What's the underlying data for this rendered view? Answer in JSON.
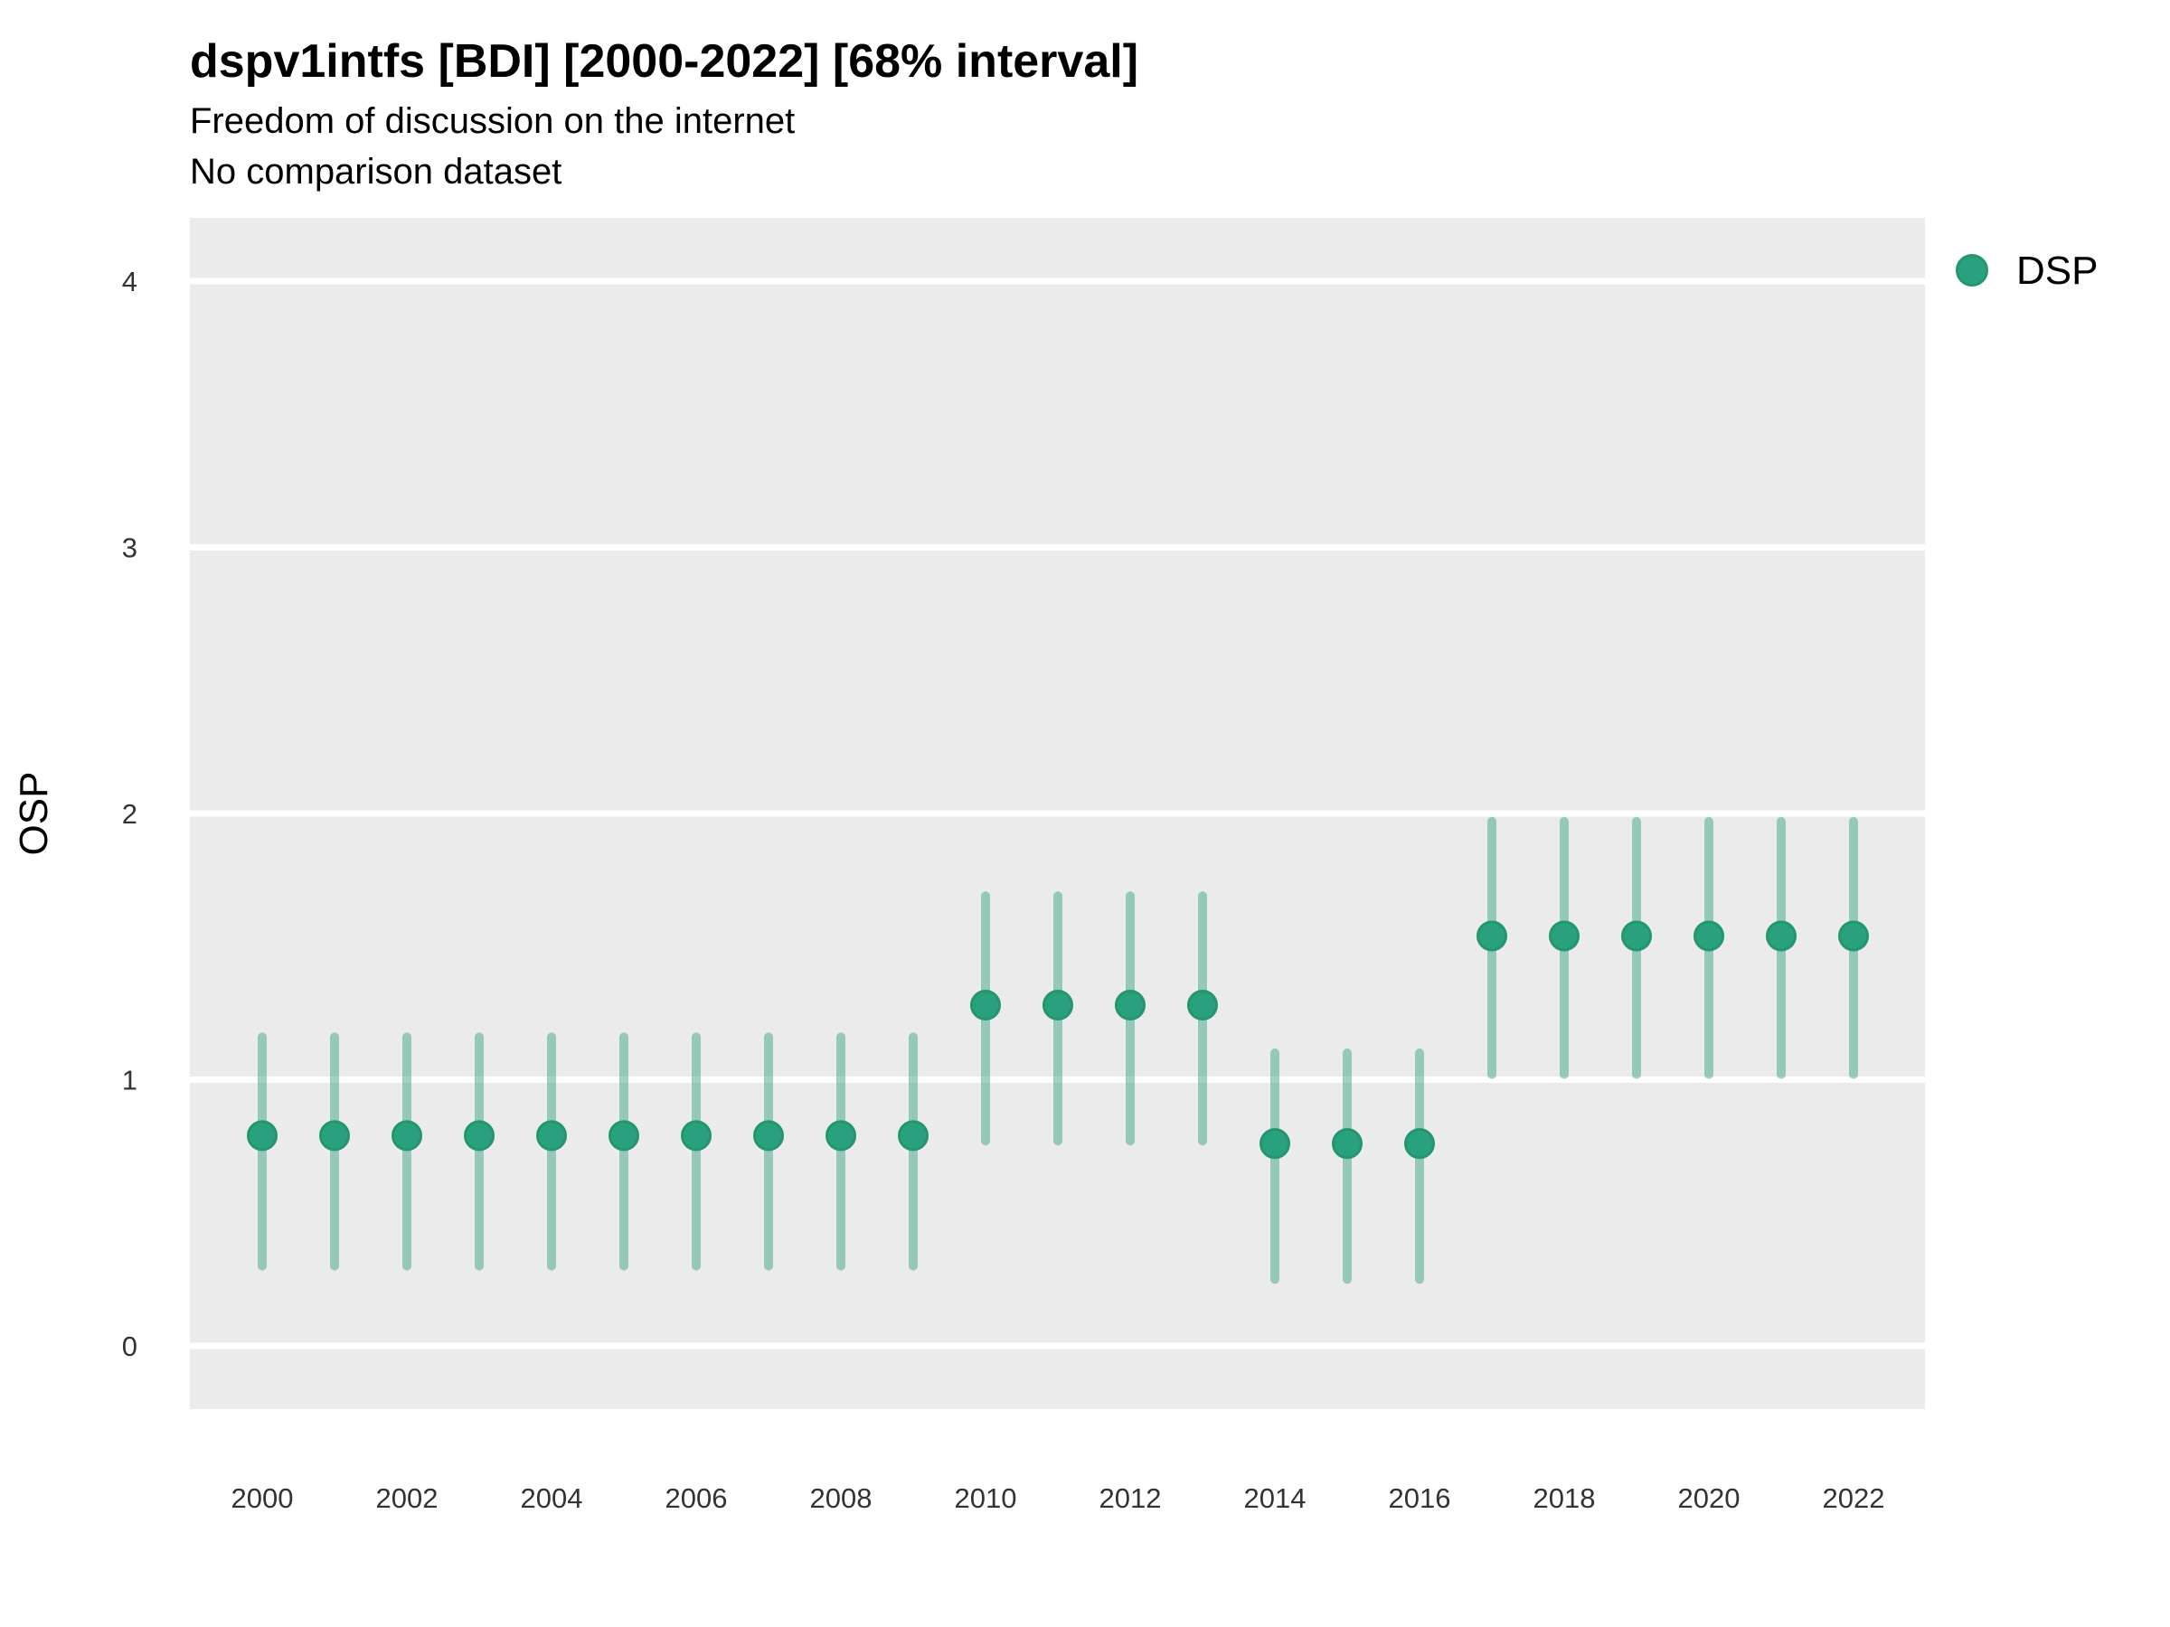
{
  "header": {
    "title": "dspv1intfs [BDI] [2000-2022] [68% interval]",
    "subtitle": "Freedom of discussion on the internet",
    "comparison_note": "No comparison dataset"
  },
  "chart_data": {
    "type": "pointrange",
    "title": "dspv1intfs [BDI] [2000-2022] [68% interval]",
    "subtitle": "Freedom of discussion on the internet",
    "note": "No comparison dataset",
    "xlabel": "",
    "ylabel": "OSP",
    "ylim": [
      0,
      4
    ],
    "yticks": [
      "4",
      "3",
      "2",
      "1",
      "0"
    ],
    "ytick_values": [
      4,
      3,
      2,
      1,
      0
    ],
    "xticks": [
      "2000",
      "2002",
      "2004",
      "2006",
      "2008",
      "2010",
      "2012",
      "2014",
      "2016",
      "2018",
      "2020",
      "2022"
    ],
    "xtick_values": [
      2000,
      2002,
      2004,
      2006,
      2008,
      2010,
      2012,
      2014,
      2016,
      2018,
      2020,
      2022
    ],
    "grid": "major-horizontal",
    "legend_position": "right",
    "legend": [
      {
        "label": "DSP",
        "color": "#2aa17e"
      }
    ],
    "interval": "68%",
    "series": [
      {
        "name": "DSP",
        "points": [
          {
            "x": 2000,
            "y": 0.79,
            "lo": 0.3,
            "hi": 1.16
          },
          {
            "x": 2001,
            "y": 0.79,
            "lo": 0.3,
            "hi": 1.16
          },
          {
            "x": 2002,
            "y": 0.79,
            "lo": 0.3,
            "hi": 1.16
          },
          {
            "x": 2003,
            "y": 0.79,
            "lo": 0.3,
            "hi": 1.16
          },
          {
            "x": 2004,
            "y": 0.79,
            "lo": 0.3,
            "hi": 1.16
          },
          {
            "x": 2005,
            "y": 0.79,
            "lo": 0.3,
            "hi": 1.16
          },
          {
            "x": 2006,
            "y": 0.79,
            "lo": 0.3,
            "hi": 1.16
          },
          {
            "x": 2007,
            "y": 0.79,
            "lo": 0.3,
            "hi": 1.16
          },
          {
            "x": 2008,
            "y": 0.79,
            "lo": 0.3,
            "hi": 1.16
          },
          {
            "x": 2009,
            "y": 0.79,
            "lo": 0.3,
            "hi": 1.16
          },
          {
            "x": 2010,
            "y": 1.28,
            "lo": 0.77,
            "hi": 1.69
          },
          {
            "x": 2011,
            "y": 1.28,
            "lo": 0.77,
            "hi": 1.69
          },
          {
            "x": 2012,
            "y": 1.28,
            "lo": 0.77,
            "hi": 1.69
          },
          {
            "x": 2013,
            "y": 1.28,
            "lo": 0.77,
            "hi": 1.69
          },
          {
            "x": 2014,
            "y": 0.76,
            "lo": 0.25,
            "hi": 1.1
          },
          {
            "x": 2015,
            "y": 0.76,
            "lo": 0.25,
            "hi": 1.1
          },
          {
            "x": 2016,
            "y": 0.76,
            "lo": 0.25,
            "hi": 1.1
          },
          {
            "x": 2017,
            "y": 1.54,
            "lo": 1.02,
            "hi": 1.97
          },
          {
            "x": 2018,
            "y": 1.54,
            "lo": 1.02,
            "hi": 1.97
          },
          {
            "x": 2019,
            "y": 1.54,
            "lo": 1.02,
            "hi": 1.97
          },
          {
            "x": 2020,
            "y": 1.54,
            "lo": 1.02,
            "hi": 1.97
          },
          {
            "x": 2021,
            "y": 1.54,
            "lo": 1.02,
            "hi": 1.97
          },
          {
            "x": 2022,
            "y": 1.54,
            "lo": 1.02,
            "hi": 1.97
          }
        ]
      }
    ],
    "colors": {
      "point_fill": "#2aa17e",
      "point_stroke": "#23966f",
      "range_bar": "rgba(43, 160, 126, 0.45)",
      "panel_bg": "#ebebeb",
      "gridline": "#ffffff",
      "tick_text": "#333333",
      "title_text": "#000000"
    }
  }
}
